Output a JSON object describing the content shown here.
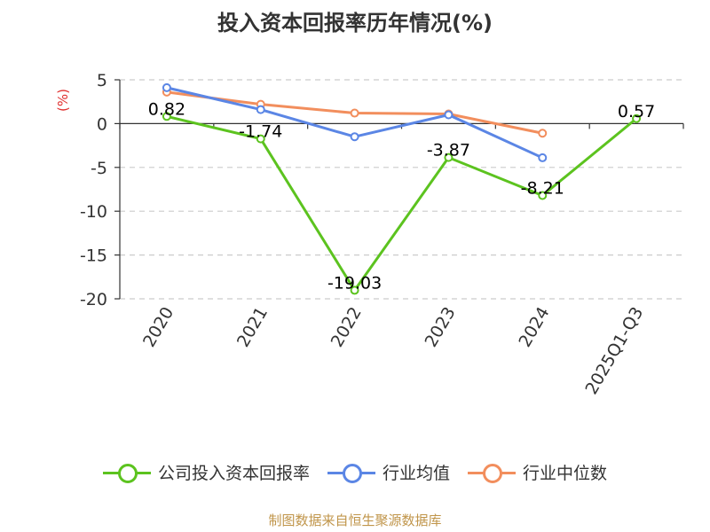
{
  "title": "投入资本回报率历年情况(%)",
  "unit_label": "(%)",
  "footer": "制图数据来自恒生聚源数据库",
  "colors": {
    "company": "#5cc31f",
    "industry_avg": "#5b86e5",
    "industry_median": "#f28e5d",
    "grid": "#cccccc",
    "axis": "#333333",
    "unit": "#e0302f",
    "footer": "#c0954a"
  },
  "chart_data": {
    "type": "line",
    "title": "投入资本回报率历年情况(%)",
    "ylabel": "(%)",
    "categories": [
      "2020",
      "2021",
      "2022",
      "2023",
      "2024",
      "2025Q1-Q3"
    ],
    "y_ticks": [
      5,
      0,
      -5,
      -10,
      -15,
      -20
    ],
    "ylim": [
      -20,
      5
    ],
    "grid": true,
    "legend_position": "bottom",
    "series": [
      {
        "name": "公司投入资本回报率",
        "values": [
          0.82,
          -1.74,
          -19.03,
          -3.87,
          -8.21,
          0.57
        ],
        "labels": [
          "0.82",
          "-1.74",
          "-19.03",
          "-3.87",
          "-8.21",
          "0.57"
        ]
      },
      {
        "name": "行业均值",
        "values": [
          4.1,
          1.6,
          -1.5,
          1.0,
          -3.9,
          null
        ]
      },
      {
        "name": "行业中位数",
        "values": [
          3.6,
          2.2,
          1.2,
          1.1,
          -1.1,
          null
        ]
      }
    ]
  }
}
